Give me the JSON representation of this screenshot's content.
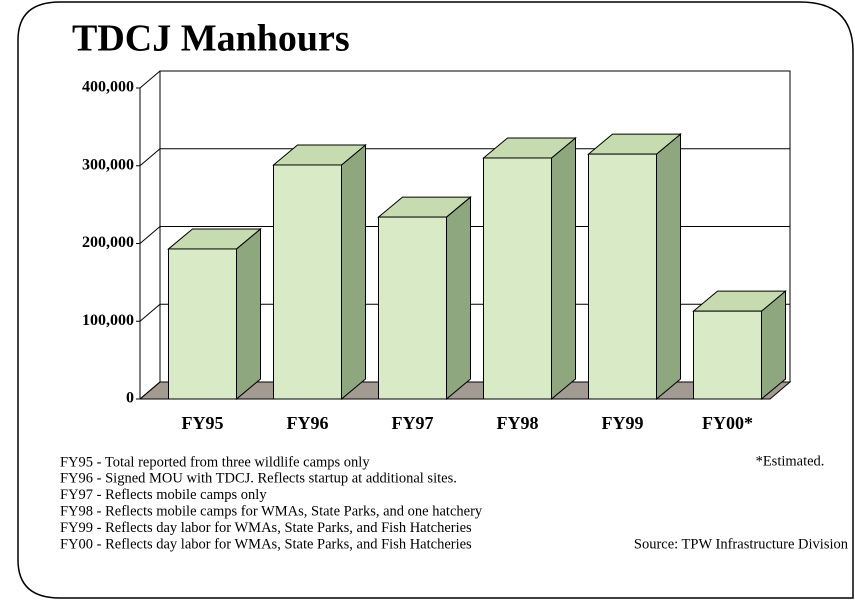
{
  "chart_data": {
    "type": "bar3d",
    "title": "TDCJ Manhours",
    "categories": [
      "FY95",
      "FY96",
      "FY97",
      "FY98",
      "FY99",
      "FY00*"
    ],
    "values": [
      193000,
      301000,
      234000,
      310000,
      315000,
      113000
    ],
    "color": "#d9eac6",
    "ylim": [
      0,
      400000
    ],
    "yticks": [
      0,
      {
        "value": 100000,
        "label": "100,000"
      },
      {
        "value": 200000,
        "label": "200,000"
      },
      {
        "value": 300000,
        "label": "300,000"
      },
      {
        "value": 400000,
        "label": "400,000"
      }
    ],
    "grid": true,
    "footnote": "*Estimated.",
    "notes": [
      "FY95 - Total reported from three wildlife camps only",
      "FY96 - Signed MOU with TDCJ.  Reflects startup at additional sites.",
      "FY97 - Reflects mobile camps only",
      "FY98 - Reflects mobile camps for WMAs, State Parks, and one hatchery",
      "FY99 - Reflects day labor for WMAs, State Parks, and Fish Hatcheries",
      "FY00 - Reflects day labor for WMAs, State Parks, and Fish Hatcheries"
    ],
    "source": "Source: TPW Infrastructure Division"
  }
}
